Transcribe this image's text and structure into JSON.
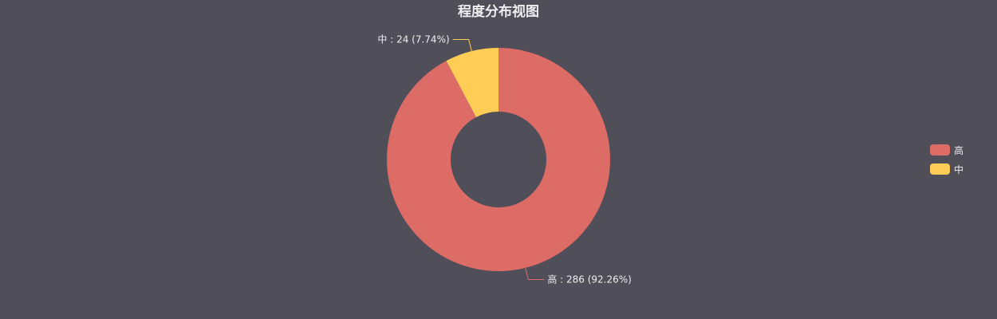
{
  "chart_data": {
    "type": "pie",
    "title": "程度分布视图",
    "donut": true,
    "legend_position": "right",
    "slices": [
      {
        "name": "高",
        "value": 286,
        "percent": 92.26,
        "color": "#dd6b66",
        "label": "高 : 286 (92.26%)"
      },
      {
        "name": "中",
        "value": 24,
        "percent": 7.74,
        "color": "#ffcd56",
        "label": "中 : 24 (7.74%)"
      }
    ]
  },
  "colors": {
    "background": "#4f4e59",
    "text": "#eeeeee"
  }
}
